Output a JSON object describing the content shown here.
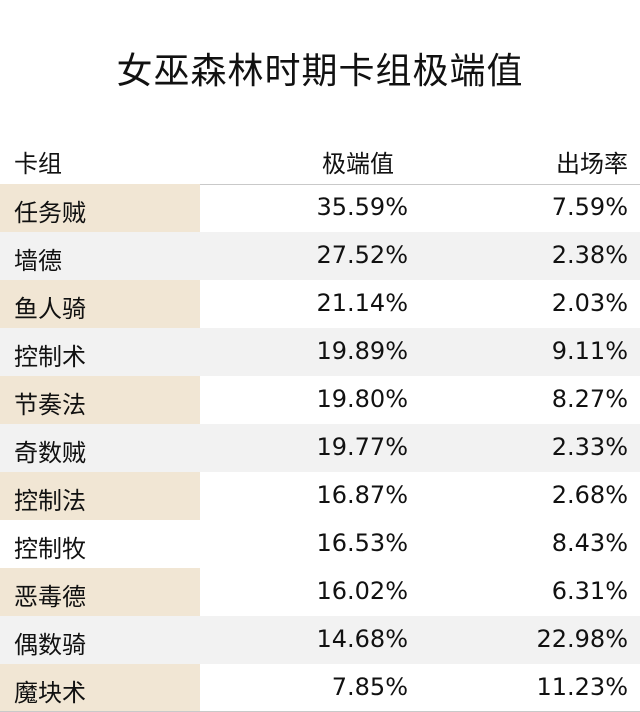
{
  "title": "女巫森林时期卡组极端值",
  "headers": {
    "deck": "卡组",
    "extreme": "极端值",
    "rate": "出场率"
  },
  "colors": {
    "highlight": "#f1e6d4",
    "zebra": "#f2f2f2"
  },
  "rows": [
    {
      "deck": "任务贼",
      "extreme": "35.59%",
      "rate": "7.59%"
    },
    {
      "deck": "墙德",
      "extreme": "27.52%",
      "rate": "2.38%"
    },
    {
      "deck": "鱼人骑",
      "extreme": "21.14%",
      "rate": "2.03%"
    },
    {
      "deck": "控制术",
      "extreme": "19.89%",
      "rate": "9.11%"
    },
    {
      "deck": "节奏法",
      "extreme": "19.80%",
      "rate": "8.27%"
    },
    {
      "deck": "奇数贼",
      "extreme": "19.77%",
      "rate": "2.33%"
    },
    {
      "deck": "控制法",
      "extreme": "16.87%",
      "rate": "2.68%"
    },
    {
      "deck": "控制牧",
      "extreme": "16.53%",
      "rate": "8.43%"
    },
    {
      "deck": "恶毒德",
      "extreme": "16.02%",
      "rate": "6.31%"
    },
    {
      "deck": "偶数骑",
      "extreme": "14.68%",
      "rate": "22.98%"
    },
    {
      "deck": "魔块术",
      "extreme": "7.85%",
      "rate": "11.23%"
    }
  ]
}
